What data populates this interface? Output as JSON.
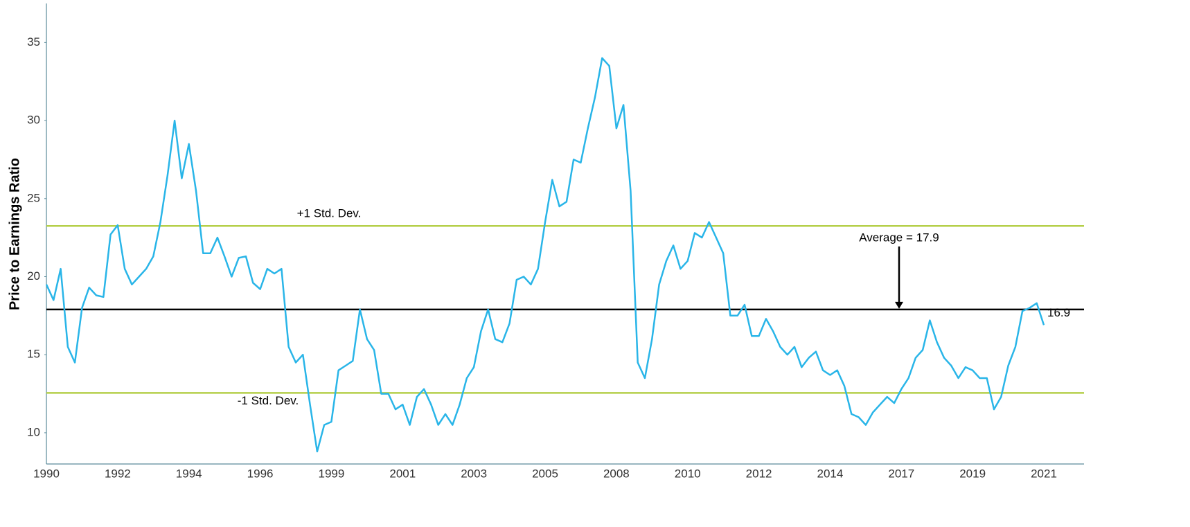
{
  "chart_data": {
    "type": "line",
    "y_label": "Price to Earnings Ratio",
    "categories": [
      "1990",
      null,
      null,
      null,
      null,
      null,
      null,
      null,
      null,
      null,
      "1992",
      null,
      null,
      null,
      null,
      null,
      null,
      null,
      null,
      null,
      "1994",
      null,
      null,
      null,
      null,
      null,
      null,
      null,
      null,
      null,
      "1996",
      null,
      null,
      null,
      null,
      null,
      null,
      null,
      null,
      null,
      "1999",
      null,
      null,
      null,
      null,
      null,
      null,
      null,
      null,
      null,
      "2001",
      null,
      null,
      null,
      null,
      null,
      null,
      null,
      null,
      null,
      "2003",
      null,
      null,
      null,
      null,
      null,
      null,
      null,
      null,
      null,
      "2005",
      null,
      null,
      null,
      null,
      null,
      null,
      null,
      null,
      null,
      "2008",
      null,
      null,
      null,
      null,
      null,
      null,
      null,
      null,
      null,
      "2010",
      null,
      null,
      null,
      null,
      null,
      null,
      null,
      null,
      null,
      "2012",
      null,
      null,
      null,
      null,
      null,
      null,
      null,
      null,
      null,
      "2014",
      null,
      null,
      null,
      null,
      null,
      null,
      null,
      null,
      null,
      "2017",
      null,
      null,
      null,
      null,
      null,
      null,
      null,
      null,
      null,
      "2019",
      null,
      null,
      null,
      null,
      null,
      null,
      null,
      null,
      null,
      "2021"
    ],
    "values": [
      19.5,
      18.5,
      20.5,
      15.5,
      14.5,
      18.0,
      19.3,
      18.8,
      18.7,
      22.7,
      23.3,
      20.5,
      19.5,
      20.0,
      20.5,
      21.3,
      23.5,
      26.5,
      30.0,
      26.3,
      28.5,
      25.5,
      21.5,
      21.5,
      22.5,
      21.3,
      20.0,
      21.2,
      21.3,
      19.6,
      19.2,
      20.5,
      20.2,
      20.5,
      15.5,
      14.5,
      15.0,
      11.8,
      8.8,
      10.5,
      10.7,
      14.0,
      14.3,
      14.6,
      17.9,
      16.0,
      15.3,
      12.5,
      12.5,
      11.5,
      11.8,
      10.5,
      12.3,
      12.8,
      11.8,
      10.5,
      11.2,
      10.5,
      11.8,
      13.5,
      14.2,
      16.5,
      17.9,
      16.0,
      15.8,
      17.0,
      19.8,
      20.0,
      19.5,
      20.5,
      23.5,
      26.2,
      24.5,
      24.8,
      27.5,
      27.3,
      29.5,
      31.5,
      34.0,
      33.5,
      29.5,
      31.0,
      25.5,
      14.5,
      13.5,
      16.0,
      19.5,
      21.0,
      22.0,
      20.5,
      21.0,
      22.8,
      22.5,
      23.5,
      22.5,
      21.5,
      17.5,
      17.5,
      18.2,
      16.2,
      16.2,
      17.3,
      16.5,
      15.5,
      15.0,
      15.5,
      14.2,
      14.8,
      15.2,
      14.0,
      13.7,
      14.0,
      13.0,
      11.2,
      11.0,
      10.5,
      11.3,
      11.8,
      12.3,
      11.9,
      12.8,
      13.5,
      14.8,
      15.3,
      17.2,
      15.8,
      14.8,
      14.3,
      13.5,
      14.2,
      14.0,
      13.5,
      13.5,
      11.5,
      12.3,
      14.3,
      15.5,
      17.8,
      18.0,
      18.3,
      16.9
    ],
    "color": "#29b5e8",
    "ylim": [
      8,
      37.5
    ],
    "yticks": [
      10,
      15,
      20,
      25,
      30,
      35
    ],
    "grid": false,
    "ref_lines": [
      {
        "label": "+1 Std. Dev.",
        "value": 23.25,
        "color": "#b5cf49"
      },
      {
        "label": "-1 Std. Dev.",
        "value": 12.55,
        "color": "#b5cf49"
      },
      {
        "label": "Average = 17.9",
        "value": 17.9,
        "color": "#000000"
      }
    ]
  }
}
